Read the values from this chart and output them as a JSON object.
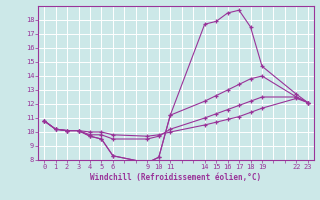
{
  "xlabel": "Windchill (Refroidissement éolien,°C)",
  "bg_color": "#cce8e8",
  "line_color": "#993399",
  "grid_color": "#ffffff",
  "xlim": [
    -0.5,
    23.5
  ],
  "ylim": [
    8,
    19
  ],
  "xticks_all": [
    0,
    1,
    2,
    3,
    4,
    5,
    6,
    7,
    8,
    9,
    10,
    11,
    12,
    13,
    14,
    15,
    16,
    17,
    18,
    19,
    20,
    21,
    22,
    23
  ],
  "xtick_labels_show": [
    0,
    1,
    2,
    3,
    4,
    5,
    6,
    9,
    10,
    11,
    14,
    15,
    16,
    17,
    18,
    19,
    22,
    23
  ],
  "yticks": [
    8,
    9,
    10,
    11,
    12,
    13,
    14,
    15,
    16,
    17,
    18
  ],
  "curves": [
    [
      [
        0,
        1,
        2,
        3,
        4,
        5,
        6,
        9,
        10,
        11,
        14,
        15,
        16,
        17,
        18,
        19,
        22,
        23
      ],
      [
        10.8,
        10.2,
        10.1,
        10.1,
        9.7,
        9.5,
        8.3,
        7.8,
        8.2,
        11.2,
        17.7,
        17.9,
        18.5,
        18.7,
        17.5,
        14.7,
        12.7,
        12.1
      ]
    ],
    [
      [
        0,
        1,
        2,
        3,
        4,
        5,
        6,
        9,
        10,
        11,
        14,
        15,
        16,
        17,
        18,
        19,
        22,
        23
      ],
      [
        10.8,
        10.2,
        10.1,
        10.1,
        9.7,
        9.5,
        8.3,
        7.8,
        8.2,
        11.2,
        12.2,
        12.6,
        13.0,
        13.4,
        13.8,
        14.0,
        12.5,
        12.1
      ]
    ],
    [
      [
        0,
        1,
        2,
        3,
        4,
        5,
        6,
        9,
        10,
        11,
        14,
        15,
        16,
        17,
        18,
        19,
        22,
        23
      ],
      [
        10.8,
        10.2,
        10.1,
        10.1,
        9.8,
        9.8,
        9.5,
        9.5,
        9.7,
        10.2,
        11.0,
        11.3,
        11.6,
        11.9,
        12.2,
        12.5,
        12.5,
        12.1
      ]
    ],
    [
      [
        0,
        1,
        2,
        3,
        4,
        5,
        6,
        9,
        10,
        11,
        14,
        15,
        16,
        17,
        18,
        19,
        22,
        23
      ],
      [
        10.8,
        10.2,
        10.1,
        10.1,
        10.0,
        10.0,
        9.8,
        9.7,
        9.8,
        10.0,
        10.5,
        10.7,
        10.9,
        11.1,
        11.4,
        11.7,
        12.4,
        12.1
      ]
    ]
  ]
}
